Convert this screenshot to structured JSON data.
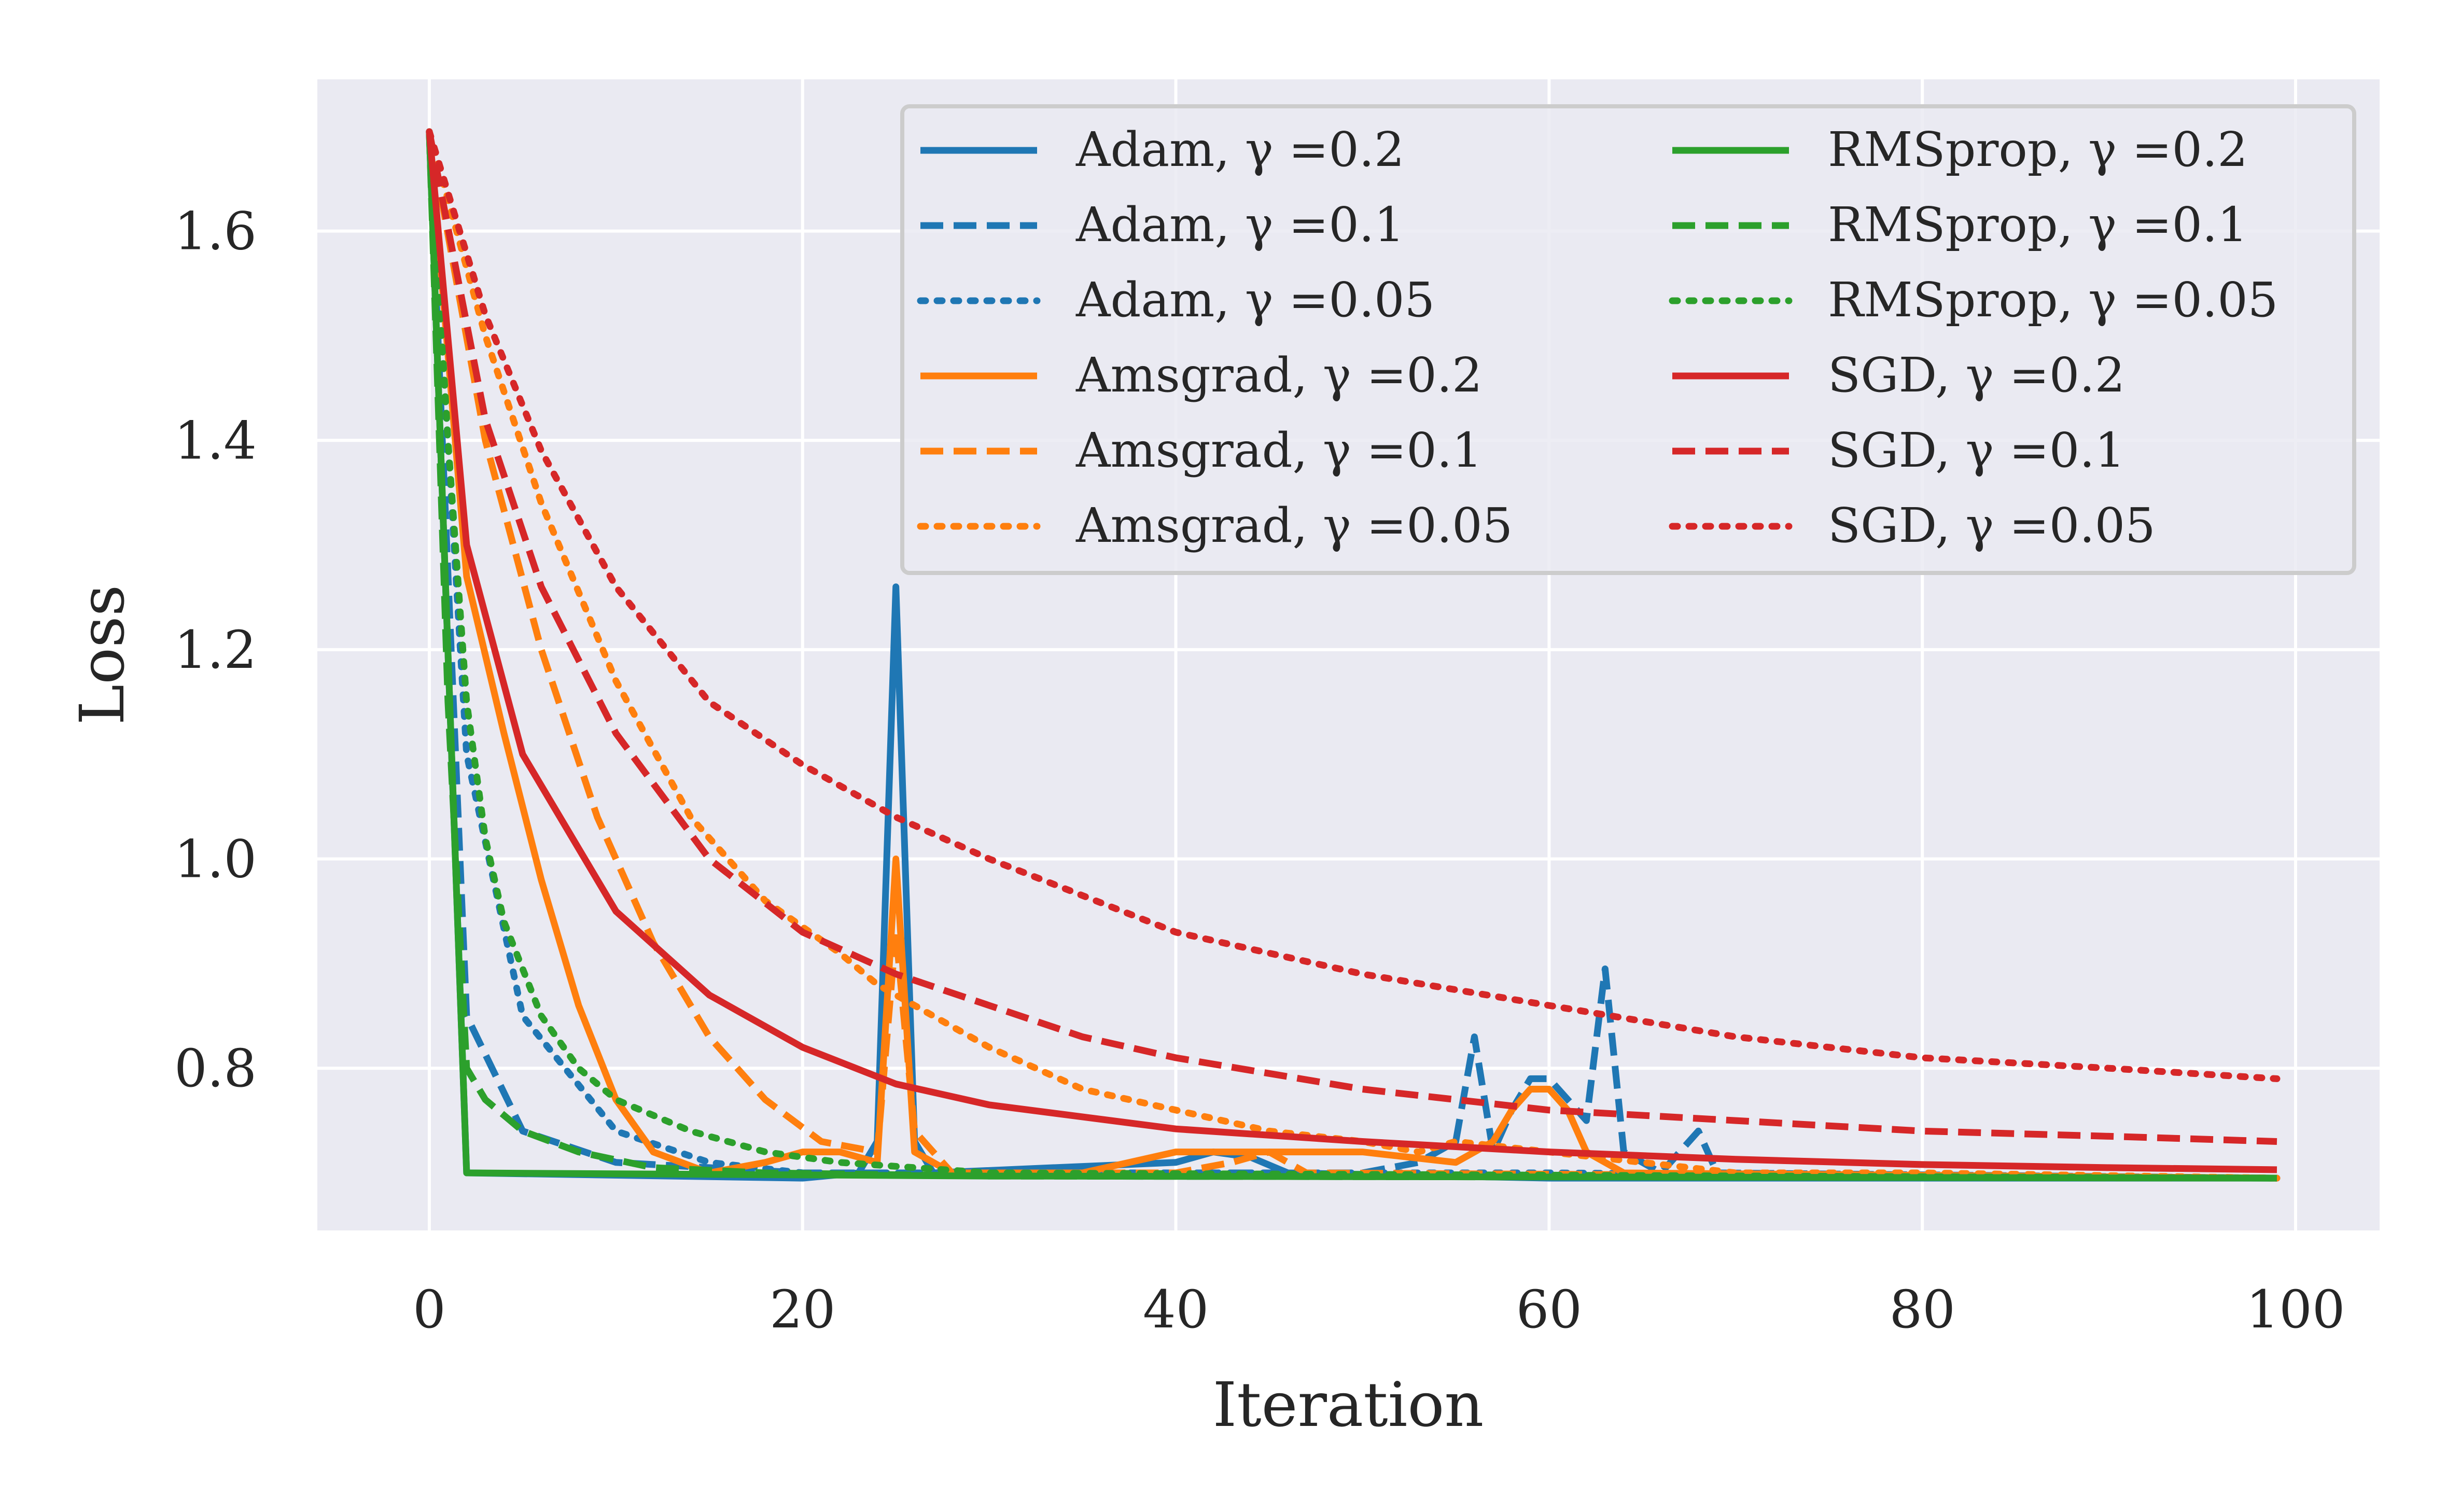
{
  "chart_data": {
    "type": "line",
    "title": "",
    "xlabel": "Iteration",
    "ylabel": "Loss",
    "xlim": [
      -6,
      104.5
    ],
    "ylim": [
      0.645,
      1.745
    ],
    "xticks": [
      0,
      20,
      40,
      60,
      80,
      100
    ],
    "yticks": [
      0.8,
      1.0,
      1.2,
      1.4,
      1.6
    ],
    "xtick_labels": [
      "0",
      "20",
      "40",
      "60",
      "80",
      "100"
    ],
    "ytick_labels": [
      "0.8",
      "1.0",
      "1.2",
      "1.4",
      "1.6"
    ],
    "grid": true,
    "legend_placement": "top-right",
    "legend_columns": 2,
    "background": "#eaeaf2",
    "series": [
      {
        "name": "Adam, γ =0.2",
        "color": "#1f77b4",
        "style": "solid",
        "points": [
          [
            0,
            1.695
          ],
          [
            2,
            0.7
          ],
          [
            20,
            0.695
          ],
          [
            23,
            0.7
          ],
          [
            24,
            0.73
          ],
          [
            25,
            1.26
          ],
          [
            26,
            0.73
          ],
          [
            27,
            0.7
          ],
          [
            40,
            0.71
          ],
          [
            42,
            0.72
          ],
          [
            44,
            0.715
          ],
          [
            46,
            0.7
          ],
          [
            60,
            0.695
          ],
          [
            99,
            0.695
          ]
        ]
      },
      {
        "name": "Adam, γ =0.1",
        "color": "#1f77b4",
        "style": "dashed",
        "points": [
          [
            0,
            1.695
          ],
          [
            2,
            0.85
          ],
          [
            5,
            0.74
          ],
          [
            10,
            0.71
          ],
          [
            20,
            0.7
          ],
          [
            40,
            0.7
          ],
          [
            50,
            0.7
          ],
          [
            53,
            0.71
          ],
          [
            55,
            0.73
          ],
          [
            56,
            0.83
          ],
          [
            57,
            0.72
          ],
          [
            58,
            0.76
          ],
          [
            59,
            0.79
          ],
          [
            60,
            0.79
          ],
          [
            61,
            0.77
          ],
          [
            62,
            0.75
          ],
          [
            63,
            0.895
          ],
          [
            64,
            0.72
          ],
          [
            66,
            0.7
          ],
          [
            68,
            0.74
          ],
          [
            69,
            0.7
          ],
          [
            99,
            0.695
          ]
        ]
      },
      {
        "name": "Adam, γ =0.05",
        "color": "#1f77b4",
        "style": "dotted",
        "points": [
          [
            0,
            1.695
          ],
          [
            2,
            1.1
          ],
          [
            5,
            0.85
          ],
          [
            10,
            0.74
          ],
          [
            15,
            0.71
          ],
          [
            20,
            0.7
          ],
          [
            40,
            0.7
          ],
          [
            60,
            0.7
          ],
          [
            99,
            0.695
          ]
        ]
      },
      {
        "name": "Amsgrad, γ =0.2",
        "color": "#ff7f0e",
        "style": "solid",
        "points": [
          [
            0,
            1.695
          ],
          [
            2,
            1.27
          ],
          [
            4,
            1.12
          ],
          [
            6,
            0.98
          ],
          [
            8,
            0.86
          ],
          [
            10,
            0.77
          ],
          [
            12,
            0.72
          ],
          [
            15,
            0.7
          ],
          [
            18,
            0.71
          ],
          [
            20,
            0.72
          ],
          [
            22,
            0.72
          ],
          [
            24,
            0.71
          ],
          [
            25,
            1.0
          ],
          [
            26,
            0.72
          ],
          [
            28,
            0.7
          ],
          [
            35,
            0.7
          ],
          [
            40,
            0.72
          ],
          [
            45,
            0.72
          ],
          [
            50,
            0.72
          ],
          [
            55,
            0.71
          ],
          [
            57,
            0.73
          ],
          [
            58,
            0.76
          ],
          [
            59,
            0.78
          ],
          [
            60,
            0.78
          ],
          [
            61,
            0.76
          ],
          [
            62,
            0.72
          ],
          [
            64,
            0.7
          ],
          [
            99,
            0.695
          ]
        ]
      },
      {
        "name": "Amsgrad, γ =0.1",
        "color": "#ff7f0e",
        "style": "dashed",
        "points": [
          [
            0,
            1.695
          ],
          [
            3,
            1.4
          ],
          [
            6,
            1.2
          ],
          [
            9,
            1.04
          ],
          [
            12,
            0.92
          ],
          [
            15,
            0.83
          ],
          [
            18,
            0.77
          ],
          [
            21,
            0.73
          ],
          [
            24,
            0.72
          ],
          [
            25,
            0.93
          ],
          [
            26,
            0.74
          ],
          [
            28,
            0.7
          ],
          [
            40,
            0.7
          ],
          [
            43,
            0.71
          ],
          [
            45,
            0.72
          ],
          [
            47,
            0.7
          ],
          [
            99,
            0.695
          ]
        ]
      },
      {
        "name": "Amsgrad, γ =0.05",
        "color": "#ff7f0e",
        "style": "dotted",
        "points": [
          [
            0,
            1.695
          ],
          [
            3,
            1.5
          ],
          [
            6,
            1.34
          ],
          [
            10,
            1.17
          ],
          [
            14,
            1.04
          ],
          [
            18,
            0.96
          ],
          [
            22,
            0.91
          ],
          [
            24,
            0.88
          ],
          [
            26,
            0.86
          ],
          [
            30,
            0.82
          ],
          [
            35,
            0.78
          ],
          [
            40,
            0.76
          ],
          [
            45,
            0.74
          ],
          [
            50,
            0.73
          ],
          [
            53,
            0.72
          ],
          [
            55,
            0.73
          ],
          [
            60,
            0.72
          ],
          [
            65,
            0.71
          ],
          [
            70,
            0.7
          ],
          [
            80,
            0.7
          ],
          [
            99,
            0.695
          ]
        ]
      },
      {
        "name": "RMSprop, γ =0.2",
        "color": "#2ca02c",
        "style": "solid",
        "points": [
          [
            0,
            1.695
          ],
          [
            2,
            0.7
          ],
          [
            30,
            0.697
          ],
          [
            99,
            0.695
          ]
        ]
      },
      {
        "name": "RMSprop, γ =0.1",
        "color": "#2ca02c",
        "style": "dashed",
        "points": [
          [
            0,
            1.695
          ],
          [
            1,
            1.15
          ],
          [
            2,
            0.8
          ],
          [
            3,
            0.77
          ],
          [
            5,
            0.74
          ],
          [
            8,
            0.72
          ],
          [
            12,
            0.705
          ],
          [
            18,
            0.7
          ],
          [
            30,
            0.697
          ],
          [
            99,
            0.695
          ]
        ]
      },
      {
        "name": "RMSprop, γ =0.05",
        "color": "#2ca02c",
        "style": "dotted",
        "points": [
          [
            0,
            1.695
          ],
          [
            1,
            1.4
          ],
          [
            2,
            1.15
          ],
          [
            3,
            1.02
          ],
          [
            4,
            0.94
          ],
          [
            6,
            0.85
          ],
          [
            8,
            0.8
          ],
          [
            10,
            0.77
          ],
          [
            14,
            0.74
          ],
          [
            18,
            0.72
          ],
          [
            22,
            0.71
          ],
          [
            30,
            0.7
          ],
          [
            99,
            0.695
          ]
        ]
      },
      {
        "name": "SGD, γ =0.2",
        "color": "#d62728",
        "style": "solid",
        "points": [
          [
            0,
            1.695
          ],
          [
            2,
            1.3
          ],
          [
            5,
            1.1
          ],
          [
            10,
            0.95
          ],
          [
            15,
            0.87
          ],
          [
            20,
            0.82
          ],
          [
            25,
            0.785
          ],
          [
            30,
            0.765
          ],
          [
            40,
            0.742
          ],
          [
            50,
            0.73
          ],
          [
            60,
            0.72
          ],
          [
            70,
            0.713
          ],
          [
            80,
            0.708
          ],
          [
            90,
            0.705
          ],
          [
            99,
            0.703
          ]
        ]
      },
      {
        "name": "SGD, γ =0.1",
        "color": "#d62728",
        "style": "dashed",
        "points": [
          [
            0,
            1.695
          ],
          [
            3,
            1.42
          ],
          [
            6,
            1.26
          ],
          [
            10,
            1.12
          ],
          [
            15,
            1.0
          ],
          [
            20,
            0.93
          ],
          [
            25,
            0.89
          ],
          [
            30,
            0.86
          ],
          [
            35,
            0.83
          ],
          [
            40,
            0.81
          ],
          [
            50,
            0.78
          ],
          [
            60,
            0.76
          ],
          [
            70,
            0.75
          ],
          [
            80,
            0.74
          ],
          [
            90,
            0.735
          ],
          [
            99,
            0.73
          ]
        ]
      },
      {
        "name": "SGD, γ =0.05",
        "color": "#d62728",
        "style": "dotted",
        "points": [
          [
            0,
            1.695
          ],
          [
            3,
            1.52
          ],
          [
            6,
            1.39
          ],
          [
            10,
            1.26
          ],
          [
            15,
            1.15
          ],
          [
            20,
            1.09
          ],
          [
            25,
            1.04
          ],
          [
            30,
            1.0
          ],
          [
            40,
            0.93
          ],
          [
            50,
            0.89
          ],
          [
            60,
            0.86
          ],
          [
            70,
            0.83
          ],
          [
            80,
            0.81
          ],
          [
            90,
            0.8
          ],
          [
            99,
            0.79
          ]
        ]
      }
    ]
  }
}
